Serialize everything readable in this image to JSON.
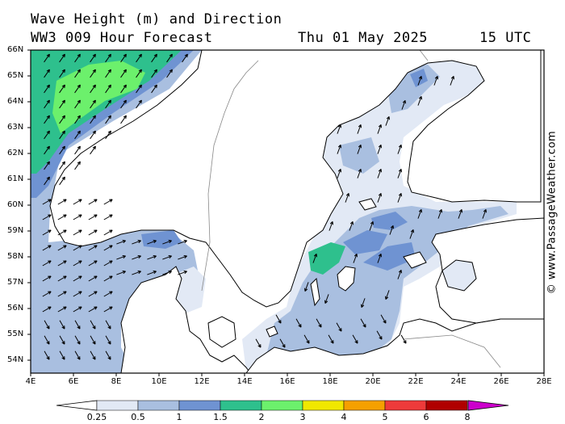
{
  "header": {
    "line1": "Wave Height (m) and Direction",
    "line2": "WW3 009 Hour Forecast",
    "date": "Thu 01 May 2025",
    "time": "15 UTC"
  },
  "credit": "© www.PassageWeather.com",
  "axes": {
    "lat_labels": [
      "66N",
      "65N",
      "64N",
      "63N",
      "62N",
      "61N",
      "60N",
      "59N",
      "58N",
      "57N",
      "56N",
      "55N",
      "54N"
    ],
    "lon_labels": [
      "4E",
      "6E",
      "8E",
      "10E",
      "12E",
      "14E",
      "16E",
      "18E",
      "20E",
      "22E",
      "24E",
      "26E",
      "28E"
    ]
  },
  "colorbar": {
    "labels": [
      "0.25",
      "0.5",
      "1",
      "1.5",
      "2",
      "3",
      "4",
      "5",
      "6",
      "8"
    ],
    "colors": [
      "#e2e9f5",
      "#a9bfe0",
      "#6f93d2",
      "#2ec08d",
      "#6cf06c",
      "#f0e800",
      "#f5a000",
      "#ee3a3a",
      "#b00000",
      "#cc00cc"
    ]
  },
  "map": {
    "land_color": "#ffffff",
    "coast_color": "#000000",
    "arrow_color": "#000000",
    "field_colors": {
      "light": "#e2e9f5",
      "mid": "#a9bfe0",
      "dark": "#6f93d2",
      "teal": "#2ec08d",
      "green": "#6cf06c"
    }
  }
}
